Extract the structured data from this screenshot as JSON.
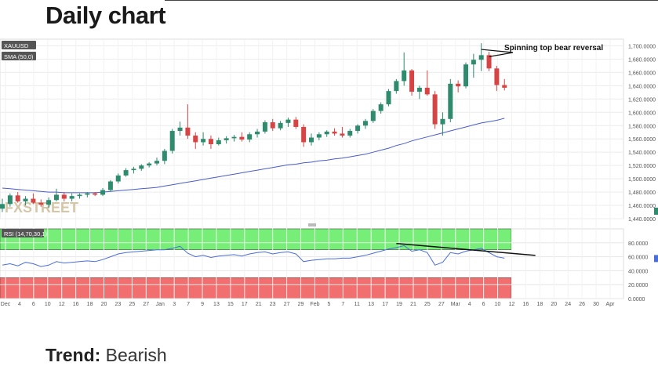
{
  "page": {
    "heading": "Daily chart",
    "trend_label": "Trend:",
    "trend_value": "Bearish"
  },
  "chart_data": {
    "type": "candlestick",
    "symbol": "XAUUSD",
    "overlay_label": "SMA (50,0)",
    "indicator_label": "RSI (14,70,30,1)",
    "annotation": "Spinning top bear reversal",
    "watermark": "FXSTREET",
    "price_axis": {
      "range": [
        1440,
        1710
      ],
      "ticks": [
        "1,700.0000",
        "1,680.0000",
        "1,660.0000",
        "1,640.0000",
        "1,620.0000",
        "1,600.0000",
        "1,580.0000",
        "1,560.0000",
        "1,540.0000",
        "1,520.0000",
        "1,500.0000",
        "1,480.0000",
        "1,460.0000",
        "1,440.0000"
      ]
    },
    "rsi_axis": {
      "range": [
        0,
        100
      ],
      "ticks": [
        "80.0000",
        "60.0000",
        "40.0000",
        "20.0000",
        "0.0000"
      ],
      "overbought": 70,
      "oversold": 30
    },
    "x_ticks": [
      "Dec",
      "4",
      "6",
      "10",
      "12",
      "16",
      "18",
      "20",
      "23",
      "25",
      "27",
      "Jan",
      "3",
      "7",
      "9",
      "13",
      "15",
      "17",
      "21",
      "23",
      "27",
      "29",
      "Feb",
      "5",
      "7",
      "11",
      "13",
      "17",
      "19",
      "21",
      "25",
      "27",
      "Mar",
      "4",
      "6",
      "10",
      "12",
      "16",
      "18",
      "20",
      "24",
      "26",
      "30",
      "Apr"
    ],
    "candles": [
      {
        "o": 1455,
        "h": 1470,
        "l": 1450,
        "c": 1462
      },
      {
        "o": 1462,
        "h": 1478,
        "l": 1458,
        "c": 1475
      },
      {
        "o": 1475,
        "h": 1480,
        "l": 1464,
        "c": 1466
      },
      {
        "o": 1466,
        "h": 1474,
        "l": 1460,
        "c": 1470
      },
      {
        "o": 1470,
        "h": 1478,
        "l": 1462,
        "c": 1464
      },
      {
        "o": 1464,
        "h": 1469,
        "l": 1458,
        "c": 1461
      },
      {
        "o": 1461,
        "h": 1472,
        "l": 1456,
        "c": 1468
      },
      {
        "o": 1468,
        "h": 1485,
        "l": 1466,
        "c": 1476
      },
      {
        "o": 1476,
        "h": 1480,
        "l": 1466,
        "c": 1470
      },
      {
        "o": 1470,
        "h": 1478,
        "l": 1466,
        "c": 1474
      },
      {
        "o": 1474,
        "h": 1478,
        "l": 1470,
        "c": 1476
      },
      {
        "o": 1476,
        "h": 1480,
        "l": 1472,
        "c": 1478
      },
      {
        "o": 1478,
        "h": 1480,
        "l": 1474,
        "c": 1476
      },
      {
        "o": 1476,
        "h": 1486,
        "l": 1474,
        "c": 1483
      },
      {
        "o": 1483,
        "h": 1498,
        "l": 1481,
        "c": 1496
      },
      {
        "o": 1496,
        "h": 1508,
        "l": 1493,
        "c": 1505
      },
      {
        "o": 1505,
        "h": 1516,
        "l": 1503,
        "c": 1513
      },
      {
        "o": 1513,
        "h": 1518,
        "l": 1508,
        "c": 1515
      },
      {
        "o": 1515,
        "h": 1522,
        "l": 1512,
        "c": 1520
      },
      {
        "o": 1520,
        "h": 1525,
        "l": 1517,
        "c": 1523
      },
      {
        "o": 1523,
        "h": 1532,
        "l": 1520,
        "c": 1527
      },
      {
        "o": 1527,
        "h": 1545,
        "l": 1522,
        "c": 1542
      },
      {
        "o": 1542,
        "h": 1575,
        "l": 1538,
        "c": 1572
      },
      {
        "o": 1572,
        "h": 1586,
        "l": 1565,
        "c": 1577
      },
      {
        "o": 1577,
        "h": 1612,
        "l": 1560,
        "c": 1565
      },
      {
        "o": 1565,
        "h": 1570,
        "l": 1545,
        "c": 1555
      },
      {
        "o": 1555,
        "h": 1570,
        "l": 1550,
        "c": 1560
      },
      {
        "o": 1560,
        "h": 1565,
        "l": 1545,
        "c": 1552
      },
      {
        "o": 1552,
        "h": 1562,
        "l": 1550,
        "c": 1558
      },
      {
        "o": 1558,
        "h": 1564,
        "l": 1553,
        "c": 1561
      },
      {
        "o": 1561,
        "h": 1566,
        "l": 1556,
        "c": 1563
      },
      {
        "o": 1563,
        "h": 1570,
        "l": 1556,
        "c": 1559
      },
      {
        "o": 1559,
        "h": 1570,
        "l": 1555,
        "c": 1567
      },
      {
        "o": 1567,
        "h": 1575,
        "l": 1562,
        "c": 1571
      },
      {
        "o": 1571,
        "h": 1588,
        "l": 1568,
        "c": 1585
      },
      {
        "o": 1585,
        "h": 1590,
        "l": 1572,
        "c": 1576
      },
      {
        "o": 1576,
        "h": 1587,
        "l": 1573,
        "c": 1584
      },
      {
        "o": 1584,
        "h": 1592,
        "l": 1578,
        "c": 1589
      },
      {
        "o": 1589,
        "h": 1593,
        "l": 1575,
        "c": 1578
      },
      {
        "o": 1578,
        "h": 1582,
        "l": 1548,
        "c": 1555
      },
      {
        "o": 1555,
        "h": 1568,
        "l": 1550,
        "c": 1562
      },
      {
        "o": 1562,
        "h": 1570,
        "l": 1558,
        "c": 1567
      },
      {
        "o": 1567,
        "h": 1573,
        "l": 1563,
        "c": 1571
      },
      {
        "o": 1571,
        "h": 1576,
        "l": 1565,
        "c": 1568
      },
      {
        "o": 1568,
        "h": 1578,
        "l": 1562,
        "c": 1565
      },
      {
        "o": 1565,
        "h": 1575,
        "l": 1562,
        "c": 1572
      },
      {
        "o": 1572,
        "h": 1582,
        "l": 1568,
        "c": 1580
      },
      {
        "o": 1580,
        "h": 1590,
        "l": 1575,
        "c": 1587
      },
      {
        "o": 1587,
        "h": 1605,
        "l": 1584,
        "c": 1602
      },
      {
        "o": 1602,
        "h": 1615,
        "l": 1598,
        "c": 1612
      },
      {
        "o": 1612,
        "h": 1635,
        "l": 1609,
        "c": 1632
      },
      {
        "o": 1632,
        "h": 1650,
        "l": 1628,
        "c": 1647
      },
      {
        "o": 1647,
        "h": 1690,
        "l": 1640,
        "c": 1663
      },
      {
        "o": 1663,
        "h": 1665,
        "l": 1625,
        "c": 1631
      },
      {
        "o": 1631,
        "h": 1640,
        "l": 1620,
        "c": 1637
      },
      {
        "o": 1637,
        "h": 1663,
        "l": 1625,
        "c": 1627
      },
      {
        "o": 1627,
        "h": 1632,
        "l": 1575,
        "c": 1582
      },
      {
        "o": 1582,
        "h": 1600,
        "l": 1565,
        "c": 1590
      },
      {
        "o": 1590,
        "h": 1650,
        "l": 1585,
        "c": 1643
      },
      {
        "o": 1643,
        "h": 1648,
        "l": 1630,
        "c": 1639
      },
      {
        "o": 1639,
        "h": 1675,
        "l": 1636,
        "c": 1672
      },
      {
        "o": 1672,
        "h": 1688,
        "l": 1652,
        "c": 1679
      },
      {
        "o": 1679,
        "h": 1704,
        "l": 1662,
        "c": 1686
      },
      {
        "o": 1686,
        "h": 1691,
        "l": 1662,
        "c": 1666
      },
      {
        "o": 1666,
        "h": 1670,
        "l": 1632,
        "c": 1641
      },
      {
        "o": 1641,
        "h": 1650,
        "l": 1633,
        "c": 1637
      }
    ],
    "sma50": [
      1486,
      1485,
      1484,
      1483,
      1482,
      1481,
      1480,
      1480,
      1479,
      1479,
      1479,
      1479,
      1479,
      1480,
      1481,
      1482,
      1483,
      1484,
      1485,
      1486,
      1487,
      1489,
      1491,
      1493,
      1495,
      1497,
      1499,
      1501,
      1503,
      1505,
      1507,
      1509,
      1511,
      1513,
      1515,
      1517,
      1519,
      1521,
      1522,
      1524,
      1525,
      1527,
      1528,
      1530,
      1531,
      1533,
      1535,
      1537,
      1540,
      1543,
      1546,
      1550,
      1553,
      1557,
      1560,
      1563,
      1566,
      1569,
      1572,
      1575,
      1578,
      1581,
      1584,
      1586,
      1588,
      1591
    ],
    "rsi": [
      48,
      50,
      47,
      52,
      50,
      46,
      48,
      53,
      51,
      52,
      53,
      54,
      53,
      56,
      60,
      64,
      66,
      67,
      68,
      69,
      70,
      70,
      72,
      75,
      65,
      60,
      62,
      59,
      61,
      62,
      63,
      61,
      64,
      66,
      67,
      64,
      66,
      67,
      64,
      53,
      55,
      56,
      57,
      57,
      58,
      58,
      60,
      62,
      65,
      68,
      71,
      73,
      76,
      68,
      70,
      66,
      48,
      52,
      66,
      64,
      68,
      70,
      72,
      66,
      60,
      58
    ],
    "trendline_rsi": {
      "from": [
        51,
        79
      ],
      "to": [
        69,
        62
      ]
    },
    "colors": {
      "up": "#2e8b6d",
      "down": "#d64545",
      "sma": "#4a5cc8",
      "rsi": "#4a6ed8",
      "overbought": "#77ee77",
      "oversold": "#f26f6f"
    }
  }
}
